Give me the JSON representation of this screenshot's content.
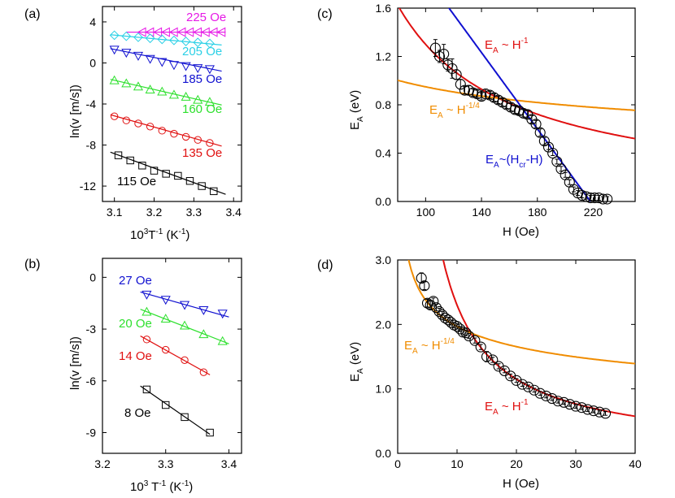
{
  "colors": {
    "magenta": "#e619e6",
    "cyan": "#2bd0e6",
    "blue": "#1010d0",
    "green": "#2ee02e",
    "red": "#e01010",
    "black": "#000000",
    "orange": "#f08c00"
  },
  "chart_data": [
    {
      "id": "a",
      "panel_label": "(a)",
      "type": "scatter",
      "xlabel": {
        "pre": "10",
        "sup1": "3",
        "mid": "T",
        "sup2": "-1",
        "post": " (K",
        "sup3": "-1",
        "end": ")"
      },
      "ylabel": "ln(v [m/s])",
      "xlim": [
        3.07,
        3.42
      ],
      "ylim": [
        -13.5,
        5.5
      ],
      "xticks": [
        3.1,
        3.2,
        3.3,
        3.4
      ],
      "xtick_labels": [
        "3.1",
        "3.2",
        "3.3",
        "3.4"
      ],
      "yticks": [
        4,
        0,
        -4,
        -8,
        -12
      ],
      "ytick_labels": [
        "4",
        "0",
        "-4",
        "-8",
        "-12"
      ],
      "series": [
        {
          "name": "225 Oe",
          "color": "magenta",
          "marker": "triangle-left",
          "x": [
            3.17,
            3.19,
            3.21,
            3.23,
            3.25,
            3.27,
            3.29,
            3.31,
            3.33,
            3.35,
            3.37
          ],
          "y": [
            3.0,
            3.0,
            3.0,
            3.0,
            3.0,
            3.0,
            3.0,
            3.0,
            3.0,
            3.0,
            3.0
          ],
          "fit": [
            [
              3.13,
              3.0
            ],
            [
              3.38,
              3.0
            ]
          ]
        },
        {
          "name": "205 Oe",
          "color": "cyan",
          "marker": "diamond",
          "x": [
            3.1,
            3.13,
            3.16,
            3.19,
            3.22,
            3.25,
            3.28,
            3.31,
            3.34
          ],
          "y": [
            2.7,
            2.6,
            2.5,
            2.4,
            2.3,
            2.2,
            2.1,
            2.0,
            1.9
          ],
          "fit": [
            [
              3.09,
              2.75
            ],
            [
              3.37,
              1.75
            ]
          ]
        },
        {
          "name": "185 Oe",
          "color": "blue",
          "marker": "triangle-down",
          "x": [
            3.1,
            3.13,
            3.16,
            3.19,
            3.22,
            3.25,
            3.28,
            3.31,
            3.34
          ],
          "y": [
            1.3,
            1.0,
            0.7,
            0.4,
            0.1,
            -0.2,
            -0.3,
            -0.5,
            -0.6
          ],
          "fit": [
            [
              3.09,
              1.4
            ],
            [
              3.37,
              -0.8
            ]
          ]
        },
        {
          "name": "160 Oe",
          "color": "green",
          "marker": "triangle-up",
          "x": [
            3.1,
            3.13,
            3.16,
            3.19,
            3.22,
            3.25,
            3.28,
            3.31,
            3.34
          ],
          "y": [
            -1.7,
            -2.0,
            -2.3,
            -2.6,
            -2.8,
            -3.1,
            -3.3,
            -3.6,
            -3.8
          ],
          "fit": [
            [
              3.09,
              -1.6
            ],
            [
              3.37,
              -4.1
            ]
          ]
        },
        {
          "name": "135 Oe",
          "color": "red",
          "marker": "circle",
          "x": [
            3.1,
            3.13,
            3.16,
            3.19,
            3.22,
            3.25,
            3.28,
            3.31,
            3.34
          ],
          "y": [
            -5.2,
            -5.6,
            -5.9,
            -6.2,
            -6.6,
            -6.9,
            -7.2,
            -7.5,
            -7.8
          ],
          "fit": [
            [
              3.09,
              -5.05
            ],
            [
              3.37,
              -8.1
            ]
          ]
        },
        {
          "name": "115 Oe",
          "color": "black",
          "marker": "square",
          "x": [
            3.11,
            3.14,
            3.17,
            3.2,
            3.23,
            3.26,
            3.29,
            3.32,
            3.35
          ],
          "y": [
            -9.0,
            -9.5,
            -10.0,
            -10.5,
            -10.8,
            -11.0,
            -11.5,
            -12.0,
            -12.5
          ],
          "fit": [
            [
              3.09,
              -8.7
            ],
            [
              3.38,
              -12.8
            ]
          ]
        }
      ]
    },
    {
      "id": "b",
      "panel_label": "(b)",
      "type": "scatter",
      "xlabel": {
        "pre": "10",
        "sup1": "3",
        "mid": " T",
        "sup2": "-1",
        "post": " (K",
        "sup3": "-1",
        "end": ")"
      },
      "ylabel": "ln(v [m/s])",
      "xlim": [
        3.2,
        3.42
      ],
      "ylim": [
        -10.2,
        1.1
      ],
      "xticks": [
        3.2,
        3.3,
        3.4
      ],
      "xtick_labels": [
        "3.2",
        "3.3",
        "3.4"
      ],
      "yticks": [
        0,
        -3,
        -6,
        -9
      ],
      "ytick_labels": [
        "0",
        "-3",
        "-6",
        "-9"
      ],
      "series": [
        {
          "name": "27 Oe",
          "color": "blue",
          "marker": "triangle-down",
          "x": [
            3.27,
            3.3,
            3.33,
            3.36,
            3.39
          ],
          "y": [
            -1.0,
            -1.3,
            -1.6,
            -1.9,
            -2.1
          ],
          "fit": [
            [
              3.26,
              -0.85
            ],
            [
              3.4,
              -2.3
            ]
          ]
        },
        {
          "name": "20 Oe",
          "color": "green",
          "marker": "triangle-up",
          "x": [
            3.27,
            3.3,
            3.33,
            3.36,
            3.39
          ],
          "y": [
            -2.0,
            -2.4,
            -2.8,
            -3.3,
            -3.7
          ],
          "fit": [
            [
              3.26,
              -1.85
            ],
            [
              3.4,
              -3.85
            ]
          ]
        },
        {
          "name": "14 Oe",
          "color": "red",
          "marker": "circle",
          "x": [
            3.27,
            3.3,
            3.33,
            3.36
          ],
          "y": [
            -3.6,
            -4.2,
            -4.8,
            -5.5
          ],
          "fit": [
            [
              3.26,
              -3.4
            ],
            [
              3.37,
              -5.65
            ]
          ]
        },
        {
          "name": "8 Oe",
          "color": "black",
          "marker": "square",
          "x": [
            3.27,
            3.3,
            3.33,
            3.37
          ],
          "y": [
            -6.5,
            -7.4,
            -8.1,
            -9.0
          ],
          "fit": [
            [
              3.26,
              -6.3
            ],
            [
              3.37,
              -9.1
            ]
          ]
        }
      ]
    },
    {
      "id": "c",
      "panel_label": "(c)",
      "type": "scatter",
      "xlabel": "H (Oe)",
      "ylabel": {
        "main": "E",
        "sub": "A",
        "rest": " (eV)"
      },
      "xlim": [
        80,
        250
      ],
      "ylim": [
        0,
        1.6
      ],
      "xticks": [
        100,
        140,
        180,
        220
      ],
      "xtick_labels": [
        "100",
        "140",
        "180",
        "220"
      ],
      "yticks": [
        0,
        0.4,
        0.8,
        1.2,
        1.6
      ],
      "ytick_labels": [
        "0.0",
        "0.4",
        "0.8",
        "1.2",
        "1.6"
      ],
      "points": {
        "x": [
          107,
          110,
          113,
          116,
          119,
          122,
          125,
          128,
          131,
          134,
          137,
          140,
          143,
          146,
          149,
          152,
          155,
          158,
          161,
          164,
          167,
          170,
          173,
          176,
          179,
          182,
          185,
          188,
          191,
          194,
          197,
          200,
          203,
          206,
          209,
          212,
          215,
          218,
          221,
          224,
          227,
          230
        ],
        "y": [
          1.27,
          1.2,
          1.22,
          1.13,
          1.1,
          1.05,
          0.97,
          0.92,
          0.92,
          0.9,
          0.89,
          0.87,
          0.89,
          0.88,
          0.86,
          0.84,
          0.82,
          0.8,
          0.78,
          0.76,
          0.75,
          0.73,
          0.72,
          0.68,
          0.64,
          0.57,
          0.5,
          0.45,
          0.4,
          0.33,
          0.27,
          0.22,
          0.16,
          0.1,
          0.07,
          0.05,
          0.04,
          0.03,
          0.03,
          0.03,
          0.02,
          0.02
        ],
        "err": [
          0.07,
          0.05,
          0.08,
          0.05,
          0.08,
          0.04,
          0.04,
          0.03,
          0.04,
          0.03,
          0.03,
          0.03,
          0.04,
          0.03,
          0.03,
          0.03,
          0.03,
          0.03,
          0.03,
          0.03,
          0.03,
          0.03,
          0.03,
          0.03,
          0.03,
          0.03,
          0.03,
          0.02,
          0.02,
          0.02,
          0.02,
          0.02,
          0.02,
          0.02,
          0.02,
          0.02,
          0.02,
          0.02,
          0.02,
          0.02,
          0.02,
          0.02
        ]
      },
      "curves": [
        {
          "name": "inverse",
          "color": "red",
          "model": "a/H",
          "a": 130,
          "h0": 80,
          "h1": 250
        },
        {
          "name": "quarter",
          "color": "orange",
          "model": "a*H^-0.25",
          "a": 3.0,
          "h0": 80,
          "h1": 250
        },
        {
          "name": "linear",
          "color": "blue",
          "model": "k*(Hcr-H)",
          "k": 0.0158,
          "hcr": 218,
          "h0": 100,
          "h1": 218
        }
      ],
      "annotations": [
        {
          "pre": "E",
          "sub": "A",
          "mid": " ~ H",
          "sup": "-1",
          "color": "red"
        },
        {
          "pre": "E",
          "sub": "A",
          "mid": " ~ H",
          "sup": "-1/4",
          "color": "orange"
        },
        {
          "pre": "E",
          "sub": "A",
          "mid": "~(H",
          "sub2": "cr",
          "end": "-H)",
          "color": "blue"
        }
      ]
    },
    {
      "id": "d",
      "panel_label": "(d)",
      "type": "scatter",
      "xlabel": "H (Oe)",
      "ylabel": {
        "main": "E",
        "sub": "A",
        "rest": " (eV)"
      },
      "xlim": [
        0,
        40
      ],
      "ylim": [
        0,
        3.0
      ],
      "xticks": [
        0,
        10,
        20,
        30,
        40
      ],
      "xtick_labels": [
        "0",
        "10",
        "20",
        "30",
        "40"
      ],
      "yticks": [
        0,
        1.0,
        2.0,
        3.0
      ],
      "ytick_labels": [
        "0.0",
        "1.0",
        "2.0",
        "3.0"
      ],
      "points": {
        "x": [
          4,
          4.5,
          5,
          5.5,
          6,
          6.5,
          7,
          7.5,
          8,
          8.5,
          9,
          9.5,
          10,
          10.5,
          11,
          11.5,
          12,
          13,
          14,
          15,
          16,
          17,
          18,
          19,
          20,
          21,
          22,
          23,
          24,
          25,
          26,
          27,
          28,
          29,
          30,
          31,
          32,
          33,
          34,
          35
        ],
        "y": [
          2.72,
          2.6,
          2.33,
          2.3,
          2.36,
          2.26,
          2.2,
          2.15,
          2.1,
          2.07,
          2.03,
          1.99,
          1.97,
          1.93,
          1.88,
          1.87,
          1.82,
          1.75,
          1.65,
          1.5,
          1.45,
          1.35,
          1.28,
          1.2,
          1.13,
          1.07,
          1.03,
          0.98,
          0.93,
          0.89,
          0.85,
          0.81,
          0.79,
          0.76,
          0.73,
          0.71,
          0.68,
          0.66,
          0.64,
          0.62
        ],
        "err": [
          0.08,
          0.06,
          0.06,
          0.06,
          0.05,
          0.05,
          0.05,
          0.05,
          0.04,
          0.04,
          0.04,
          0.04,
          0.04,
          0.04,
          0.04,
          0.04,
          0.04,
          0.04,
          0.04,
          0.08,
          0.04,
          0.04,
          0.03,
          0.03,
          0.03,
          0.03,
          0.03,
          0.03,
          0.03,
          0.03,
          0.03,
          0.03,
          0.03,
          0.03,
          0.03,
          0.03,
          0.03,
          0.03,
          0.03,
          0.03
        ]
      },
      "curves": [
        {
          "name": "inverse",
          "color": "red",
          "model": "a/H",
          "a": 23,
          "h0": 7.6,
          "h1": 40
        },
        {
          "name": "quarter",
          "color": "orange",
          "model": "a*H^-0.25",
          "a": 3.5,
          "h0": 1.8,
          "h1": 40
        }
      ],
      "annotations": [
        {
          "pre": "E",
          "sub": "A",
          "mid": " ~ H",
          "sup": "-1/4",
          "color": "orange"
        },
        {
          "pre": "E",
          "sub": "A",
          "mid": " ~ H",
          "sup": "-1",
          "color": "red"
        }
      ]
    }
  ]
}
